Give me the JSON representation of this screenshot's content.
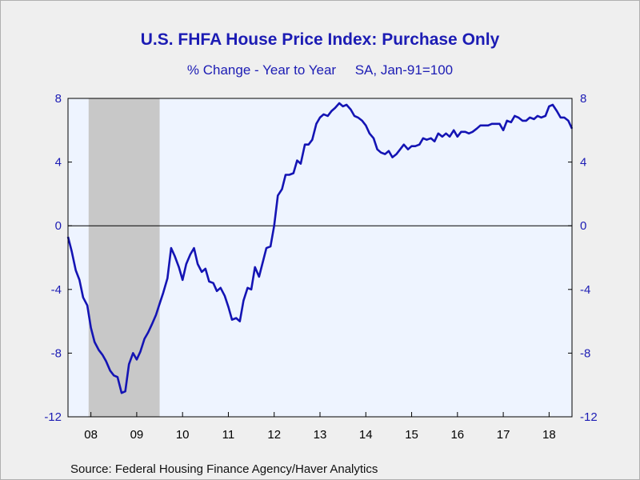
{
  "title": "U.S. FHFA House Price Index: Purchase Only",
  "subtitle": "% Change - Year to Year     SA, Jan-91=100",
  "source": "Source:  Federal Housing Finance Agency/Haver Analytics",
  "colors": {
    "line": "#1414b4",
    "plot_bg": "#eef4ff",
    "recession": "#c8c8c8",
    "tick_text": "#1c1cb4"
  },
  "chart_data": {
    "type": "line",
    "title": "U.S. FHFA House Price Index: Purchase Only",
    "subtitle": "% Change - Year to Year     SA, Jan-91=100",
    "ylim": [
      -12,
      8
    ],
    "yticks": [
      8,
      4,
      0,
      -4,
      -8,
      -12
    ],
    "xlim": [
      2007.5,
      2018.5
    ],
    "xticks": [
      {
        "label": "08",
        "x": 2008.5
      },
      {
        "label": "09",
        "x": 2009.5
      },
      {
        "label": "10",
        "x": 2010.5
      },
      {
        "label": "11",
        "x": 2011.5
      },
      {
        "label": "12",
        "x": 2012.5
      },
      {
        "label": "13",
        "x": 2013.5
      },
      {
        "label": "14",
        "x": 2014.5
      },
      {
        "label": "15",
        "x": 2015.5
      },
      {
        "label": "16",
        "x": 2016.5
      },
      {
        "label": "17",
        "x": 2017.5
      },
      {
        "label": "18",
        "x": 2018.5
      }
    ],
    "recession": [
      2007.95,
      2009.5
    ],
    "zero_line": true,
    "series": [
      {
        "points": [
          [
            2007.5,
            -0.7
          ],
          [
            2007.58,
            -1.6
          ],
          [
            2007.67,
            -2.8
          ],
          [
            2007.75,
            -3.4
          ],
          [
            2007.83,
            -4.5
          ],
          [
            2007.92,
            -5.0
          ],
          [
            2008.0,
            -6.4
          ],
          [
            2008.08,
            -7.3
          ],
          [
            2008.17,
            -7.8
          ],
          [
            2008.25,
            -8.1
          ],
          [
            2008.33,
            -8.5
          ],
          [
            2008.42,
            -9.1
          ],
          [
            2008.5,
            -9.4
          ],
          [
            2008.58,
            -9.5
          ],
          [
            2008.67,
            -10.5
          ],
          [
            2008.75,
            -10.4
          ],
          [
            2008.83,
            -8.7
          ],
          [
            2008.92,
            -8.0
          ],
          [
            2009.0,
            -8.4
          ],
          [
            2009.08,
            -7.9
          ],
          [
            2009.17,
            -7.1
          ],
          [
            2009.25,
            -6.7
          ],
          [
            2009.33,
            -6.2
          ],
          [
            2009.42,
            -5.6
          ],
          [
            2009.5,
            -4.9
          ],
          [
            2009.58,
            -4.2
          ],
          [
            2009.67,
            -3.3
          ],
          [
            2009.75,
            -1.4
          ],
          [
            2009.83,
            -1.9
          ],
          [
            2009.92,
            -2.6
          ],
          [
            2010.0,
            -3.4
          ],
          [
            2010.08,
            -2.4
          ],
          [
            2010.17,
            -1.8
          ],
          [
            2010.25,
            -1.4
          ],
          [
            2010.33,
            -2.4
          ],
          [
            2010.42,
            -2.9
          ],
          [
            2010.5,
            -2.7
          ],
          [
            2010.58,
            -3.5
          ],
          [
            2010.67,
            -3.6
          ],
          [
            2010.75,
            -4.1
          ],
          [
            2010.83,
            -3.9
          ],
          [
            2010.92,
            -4.4
          ],
          [
            2011.0,
            -5.1
          ],
          [
            2011.08,
            -5.9
          ],
          [
            2011.17,
            -5.8
          ],
          [
            2011.25,
            -6.0
          ],
          [
            2011.33,
            -4.7
          ],
          [
            2011.42,
            -3.9
          ],
          [
            2011.5,
            -4.0
          ],
          [
            2011.58,
            -2.6
          ],
          [
            2011.67,
            -3.2
          ],
          [
            2011.75,
            -2.3
          ],
          [
            2011.83,
            -1.4
          ],
          [
            2011.92,
            -1.3
          ],
          [
            2012.0,
            0.0
          ],
          [
            2012.08,
            1.9
          ],
          [
            2012.17,
            2.3
          ],
          [
            2012.25,
            3.2
          ],
          [
            2012.33,
            3.2
          ],
          [
            2012.42,
            3.3
          ],
          [
            2012.5,
            4.1
          ],
          [
            2012.58,
            3.9
          ],
          [
            2012.67,
            5.1
          ],
          [
            2012.75,
            5.1
          ],
          [
            2012.83,
            5.4
          ],
          [
            2012.92,
            6.4
          ],
          [
            2013.0,
            6.8
          ],
          [
            2013.08,
            7.0
          ],
          [
            2013.17,
            6.9
          ],
          [
            2013.25,
            7.2
          ],
          [
            2013.33,
            7.4
          ],
          [
            2013.42,
            7.7
          ],
          [
            2013.5,
            7.5
          ],
          [
            2013.58,
            7.6
          ],
          [
            2013.67,
            7.3
          ],
          [
            2013.75,
            6.9
          ],
          [
            2013.83,
            6.8
          ],
          [
            2013.92,
            6.6
          ],
          [
            2014.0,
            6.3
          ],
          [
            2014.08,
            5.8
          ],
          [
            2014.17,
            5.5
          ],
          [
            2014.25,
            4.8
          ],
          [
            2014.33,
            4.6
          ],
          [
            2014.42,
            4.5
          ],
          [
            2014.5,
            4.7
          ],
          [
            2014.58,
            4.3
          ],
          [
            2014.67,
            4.5
          ],
          [
            2014.75,
            4.8
          ],
          [
            2014.83,
            5.1
          ],
          [
            2014.92,
            4.8
          ],
          [
            2015.0,
            5.0
          ],
          [
            2015.08,
            5.0
          ],
          [
            2015.17,
            5.1
          ],
          [
            2015.25,
            5.5
          ],
          [
            2015.33,
            5.4
          ],
          [
            2015.42,
            5.5
          ],
          [
            2015.5,
            5.3
          ],
          [
            2015.58,
            5.8
          ],
          [
            2015.67,
            5.6
          ],
          [
            2015.75,
            5.8
          ],
          [
            2015.83,
            5.6
          ],
          [
            2015.92,
            6.0
          ],
          [
            2016.0,
            5.6
          ],
          [
            2016.08,
            5.9
          ],
          [
            2016.17,
            5.9
          ],
          [
            2016.25,
            5.8
          ],
          [
            2016.33,
            5.9
          ],
          [
            2016.42,
            6.1
          ],
          [
            2016.5,
            6.3
          ],
          [
            2016.58,
            6.3
          ],
          [
            2016.67,
            6.3
          ],
          [
            2016.75,
            6.4
          ],
          [
            2016.83,
            6.4
          ],
          [
            2016.92,
            6.4
          ],
          [
            2017.0,
            6.0
          ],
          [
            2017.08,
            6.6
          ],
          [
            2017.17,
            6.5
          ],
          [
            2017.25,
            6.9
          ],
          [
            2017.33,
            6.8
          ],
          [
            2017.42,
            6.6
          ],
          [
            2017.5,
            6.6
          ],
          [
            2017.58,
            6.8
          ],
          [
            2017.67,
            6.7
          ],
          [
            2017.75,
            6.9
          ],
          [
            2017.83,
            6.8
          ],
          [
            2017.92,
            6.9
          ],
          [
            2018.0,
            7.5
          ],
          [
            2018.08,
            7.6
          ],
          [
            2018.17,
            7.2
          ],
          [
            2018.25,
            6.8
          ],
          [
            2018.33,
            6.8
          ],
          [
            2018.42,
            6.6
          ],
          [
            2018.5,
            6.1
          ]
        ]
      }
    ]
  }
}
